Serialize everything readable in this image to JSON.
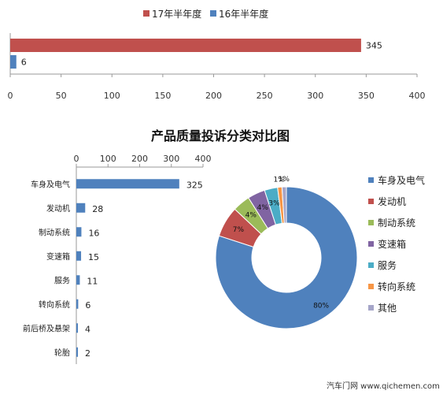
{
  "chart_data": [
    {
      "type": "bar",
      "orientation": "horizontal",
      "series": [
        {
          "name": "17年半年度",
          "color": "#C0504D",
          "values": [
            345
          ]
        },
        {
          "name": "16年半年度",
          "color": "#4F81BD",
          "values": [
            6
          ]
        }
      ],
      "data_labels": [
        "345",
        "6"
      ],
      "xlim": [
        0,
        400
      ],
      "xticks": [
        "0",
        "50",
        "100",
        "150",
        "200",
        "250",
        "300",
        "350",
        "400"
      ],
      "legend_position": "top",
      "grid": false
    },
    {
      "type": "bar",
      "orientation": "horizontal",
      "categories": [
        "车身及电气",
        "发动机",
        "制动系统",
        "变速箱",
        "服务",
        "转向系统",
        "前后桥及悬架",
        "轮胎"
      ],
      "values": [
        325,
        28,
        16,
        15,
        11,
        6,
        4,
        2
      ],
      "data_labels": [
        "325",
        "28",
        "16",
        "15",
        "11",
        "6",
        "4",
        "2"
      ],
      "xlim": [
        0,
        400
      ],
      "xticks": [
        "0",
        "100",
        "200",
        "300",
        "400"
      ],
      "color": "#4F81BD",
      "grid": false
    },
    {
      "type": "pie",
      "style": "donut",
      "categories": [
        "车身及电气",
        "发动机",
        "制动系统",
        "变速箱",
        "服务",
        "转向系统",
        "其他"
      ],
      "percent_labels": [
        "80%",
        "7%",
        "4%",
        "4%",
        "3%",
        "1%",
        "1%"
      ],
      "values": [
        80,
        7,
        4,
        4,
        3,
        1,
        1
      ],
      "colors": [
        "#4F81BD",
        "#C0504D",
        "#9BBB59",
        "#8064A2",
        "#4BACC6",
        "#F79646",
        "#A5A5C8"
      ],
      "legend_position": "right"
    }
  ],
  "panel_title": "产品质量投诉分类对比图",
  "watermark": "汽车门网 www.qichemen.com"
}
